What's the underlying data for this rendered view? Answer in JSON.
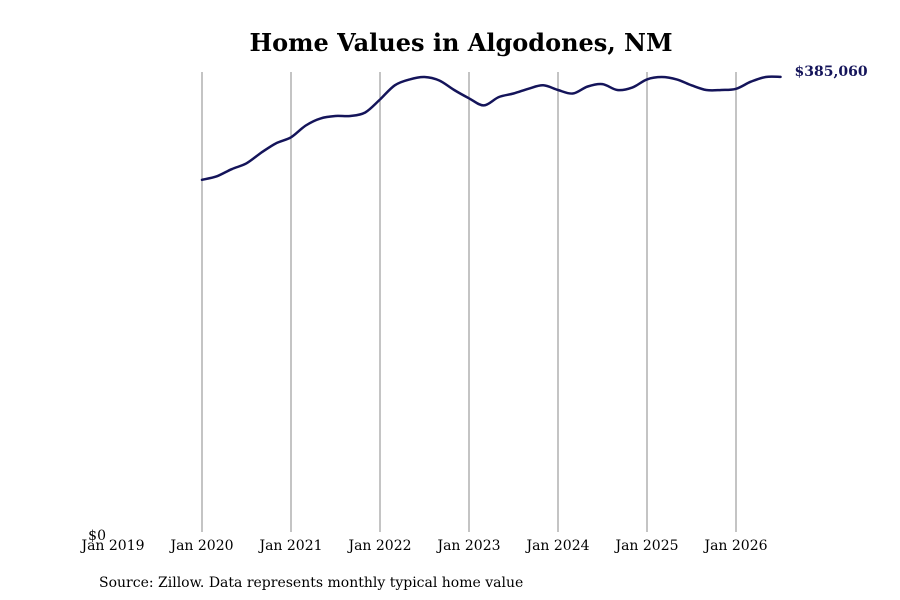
{
  "chart_data": {
    "type": "line",
    "title": "Home Values in Algodones, NM",
    "xlabel": "",
    "ylabel": "",
    "x_ticks": [
      "Jan 2019",
      "Jan 2020",
      "Jan 2021",
      "Jan 2022",
      "Jan 2023",
      "Jan 2024",
      "Jan 2025",
      "Jan 2026"
    ],
    "xlim": [
      "2019-01",
      "2026-09"
    ],
    "y_ticks": [
      {
        "value": 0,
        "label": "$0"
      }
    ],
    "ylim": [
      0,
      393000
    ],
    "grid": "vertical",
    "line_color": "#14145a",
    "end_label": "$385,060",
    "source": "Source: Zillow. Data represents monthly typical home value",
    "series": [
      {
        "points": [
          [
            "2020-01",
            298000
          ],
          [
            "2020-03",
            301000
          ],
          [
            "2020-05",
            307000
          ],
          [
            "2020-07",
            312000
          ],
          [
            "2020-09",
            321000
          ],
          [
            "2020-11",
            329000
          ],
          [
            "2021-01",
            334000
          ],
          [
            "2021-03",
            344000
          ],
          [
            "2021-05",
            350000
          ],
          [
            "2021-07",
            352000
          ],
          [
            "2021-09",
            352000
          ],
          [
            "2021-11",
            355000
          ],
          [
            "2022-01",
            366000
          ],
          [
            "2022-03",
            378000
          ],
          [
            "2022-05",
            383000
          ],
          [
            "2022-07",
            385000
          ],
          [
            "2022-09",
            382000
          ],
          [
            "2022-11",
            374000
          ],
          [
            "2023-01",
            367000
          ],
          [
            "2023-03",
            361000
          ],
          [
            "2023-05",
            368000
          ],
          [
            "2023-07",
            371000
          ],
          [
            "2023-09",
            375000
          ],
          [
            "2023-11",
            378000
          ],
          [
            "2024-01",
            374000
          ],
          [
            "2024-03",
            371000
          ],
          [
            "2024-05",
            377000
          ],
          [
            "2024-07",
            379000
          ],
          [
            "2024-09",
            374000
          ],
          [
            "2024-11",
            376000
          ],
          [
            "2025-01",
            383000
          ],
          [
            "2025-03",
            385000
          ],
          [
            "2025-05",
            383000
          ],
          [
            "2025-07",
            378000
          ],
          [
            "2025-09",
            374000
          ],
          [
            "2025-11",
            374000
          ],
          [
            "2026-01",
            375000
          ],
          [
            "2026-03",
            381000
          ],
          [
            "2026-05",
            385000
          ],
          [
            "2026-07",
            385060
          ]
        ]
      }
    ]
  }
}
